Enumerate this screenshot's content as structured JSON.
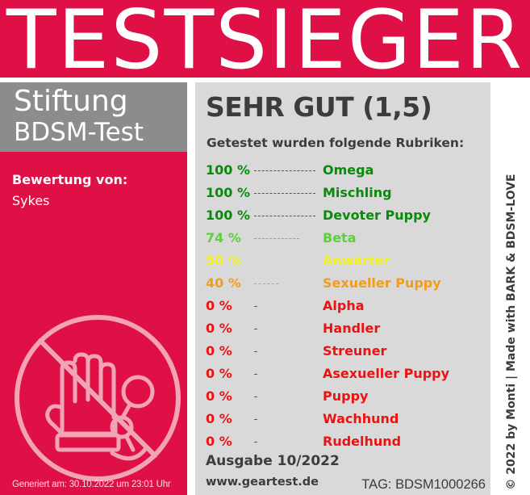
{
  "colors": {
    "brand_red": "#de1046",
    "org_gray": "#8c8c8c",
    "panel_gray": "#d9d9d9",
    "text_dark": "#3c3c3c",
    "green": "#0a8a0a",
    "light_green": "#5fcf3a",
    "yellow": "#f2f21a",
    "orange": "#f39c1a",
    "red": "#ee1111"
  },
  "banner": {
    "title": "TESTSIEGER"
  },
  "left": {
    "org_line1": "Stiftung",
    "org_line2": "BDSM-Test",
    "rating_label": "Bewertung von:",
    "rating_name": "Sykes",
    "emblem_icon": "hand-and-handcuffs-icon",
    "generated": "Generiert am: 30.10.2022 um 23:01 Uhr"
  },
  "main": {
    "grade": "SEHR GUT (1,5)",
    "categories_heading": "Getestet wurden folgende Rubriken:",
    "results": [
      {
        "percent": "100 %",
        "value": 100,
        "label": "Omega",
        "color": "#0a8a0a"
      },
      {
        "percent": "100 %",
        "value": 100,
        "label": "Mischling",
        "color": "#0a8a0a"
      },
      {
        "percent": "100 %",
        "value": 100,
        "label": "Devoter Puppy",
        "color": "#0a8a0a"
      },
      {
        "percent": "74 %",
        "value": 74,
        "label": "Beta",
        "color": "#5fcf3a"
      },
      {
        "percent": "50 %",
        "value": 50,
        "label": "Anwärter",
        "color": "#f2f21a"
      },
      {
        "percent": "40 %",
        "value": 40,
        "label": "Sexueller Puppy",
        "color": "#f39c1a"
      },
      {
        "percent": "0 %",
        "value": 0,
        "label": "Alpha",
        "color": "#ee1111"
      },
      {
        "percent": "0 %",
        "value": 0,
        "label": "Handler",
        "color": "#ee1111"
      },
      {
        "percent": "0 %",
        "value": 0,
        "label": "Streuner",
        "color": "#ee1111"
      },
      {
        "percent": "0 %",
        "value": 0,
        "label": "Asexueller Puppy",
        "color": "#ee1111"
      },
      {
        "percent": "0 %",
        "value": 0,
        "label": "Puppy",
        "color": "#ee1111"
      },
      {
        "percent": "0 %",
        "value": 0,
        "label": "Wachhund",
        "color": "#ee1111"
      },
      {
        "percent": "0 %",
        "value": 0,
        "label": "Rudelhund",
        "color": "#ee1111"
      }
    ],
    "edition": "Ausgabe 10/2022",
    "website": "www.geartest.de",
    "tag": "TAG: BDSM1000266"
  },
  "credit": "© 2022 by Monti | Made with BARK & BDSM-LOVE"
}
